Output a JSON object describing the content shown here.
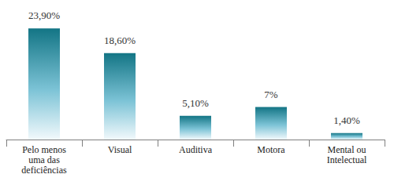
{
  "chart_data": {
    "type": "bar",
    "categories": [
      "Pelo menos\numa das\ndeficiências",
      "Visual",
      "Auditiva",
      "Motora",
      "Mental ou\nIntelectual"
    ],
    "values": [
      23.9,
      18.6,
      5.1,
      7,
      1.4
    ],
    "value_labels": [
      "23,90%",
      "18,60%",
      "5,10%",
      "7%",
      "1,40%"
    ],
    "color": "#137585",
    "ylim": [
      0,
      28
    ],
    "grid": false,
    "data_labels": true,
    "tick_labels": "x"
  }
}
